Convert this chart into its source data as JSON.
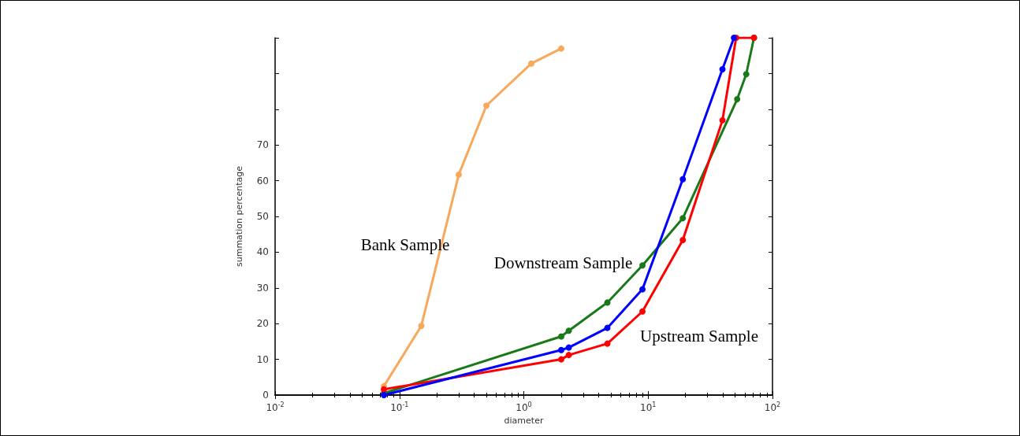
{
  "chart_data": {
    "type": "line",
    "xlabel": "diameter",
    "ylabel": "summation percentage",
    "log": "x",
    "xlim": [
      0.01,
      100
    ],
    "xticks": [
      {
        "value": 0.01,
        "label": "10$^{-2}$"
      },
      {
        "value": 0.1,
        "label": "10$^{-1}$"
      },
      {
        "value": 1,
        "label": "10$^{0}$"
      },
      {
        "value": 10,
        "label": "10$^{1}$"
      },
      {
        "value": 100,
        "label": "10$^{2}$"
      }
    ],
    "ylim": [
      0,
      100
    ],
    "yticks": [
      0,
      10,
      20,
      30,
      40,
      50,
      60,
      70,
      {
        "value": 80,
        "label": null
      },
      {
        "value": 90,
        "label": null
      },
      {
        "value": 100,
        "label": null
      }
    ],
    "grid": false,
    "legend": false,
    "marker": "circle",
    "line_style": "solid",
    "series": [
      {
        "name": "Bank Sample",
        "color": "#f7a85a",
        "x": [
          0.075,
          0.15,
          0.3,
          0.5,
          1.15,
          2
        ],
        "values": [
          2.5,
          19.4,
          61.7,
          81,
          92.8,
          97
        ]
      },
      {
        "name": "Downstream Sample",
        "color": "#1a7a1a",
        "x": [
          0.075,
          2,
          2.3,
          4.7,
          9,
          19,
          52,
          61.5,
          71
        ],
        "values": [
          0.5,
          16.4,
          18,
          25.9,
          36.3,
          49.5,
          82.8,
          89.8,
          100
        ]
      },
      {
        "name": "Upstream Sample",
        "color": "#ff0000",
        "x": [
          0.075,
          2,
          2.3,
          4.7,
          9,
          19,
          39.6,
          51,
          71
        ],
        "values": [
          1.6,
          10,
          11.2,
          14.4,
          23.4,
          43.4,
          76.9,
          100,
          100
        ]
      },
      {
        "color": "#0000ff",
        "x": [
          0.075,
          2,
          2.3,
          4.7,
          9,
          19,
          39.6,
          49
        ],
        "values": [
          0,
          12.6,
          13.3,
          18.8,
          29.6,
          60.4,
          91.2,
          100
        ]
      }
    ]
  }
}
